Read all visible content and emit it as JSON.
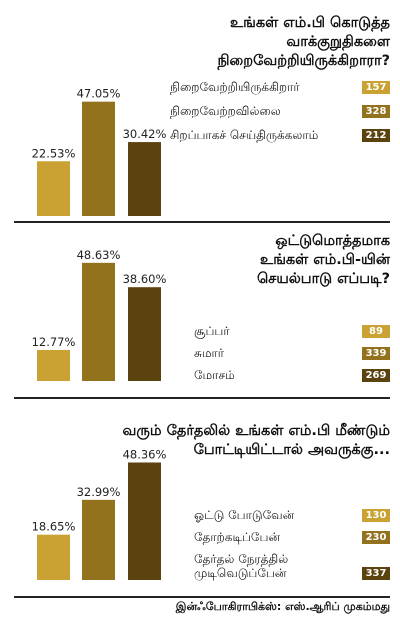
{
  "colors": {
    "light": "#c9a233",
    "mid": "#93721e",
    "dark": "#5a430f"
  },
  "chart_data": [
    {
      "type": "bar",
      "title": "உங்கள் எம்.பி கொடுத்த வாக்குறுதிகளை நிறைவேற்றியிருக்கிறாரா?",
      "title_lines": [
        "உங்கள் எம்.பி கொடுத்த",
        "வாக்குறுதிகளை நிறைவேற்றியிருக்கிறாரா?"
      ],
      "categories": [
        "நிறைவேற்றியிருக்கிறார்",
        "நிறைவேற்றவில்லை",
        "சிறப்பாகச் செய்திருக்கலாம்"
      ],
      "value_labels": [
        "22.53%",
        "47.05%",
        "30.42%"
      ],
      "values": [
        22.53,
        47.05,
        30.42
      ],
      "counts": [
        "157",
        "328",
        "212"
      ],
      "xlabel": "",
      "ylabel": ""
    },
    {
      "type": "bar",
      "title": "ஒட்டுமொத்தமாக உங்கள் எம்.பி-யின் செயல்பாடு எப்படி?",
      "title_lines": [
        "ஒட்டுமொத்தமாக",
        "உங்கள் எம்.பி-யின்",
        "செயல்பாடு எப்படி?"
      ],
      "categories": [
        "சூப்பர்",
        "சுமார்",
        "மோசம்"
      ],
      "value_labels": [
        "12.77%",
        "48.63%",
        "38.60%"
      ],
      "values": [
        12.77,
        48.63,
        38.6
      ],
      "counts": [
        "89",
        "339",
        "269"
      ],
      "xlabel": "",
      "ylabel": ""
    },
    {
      "type": "bar",
      "title": "வரும் தேர்தலில் உங்கள் எம்.பி மீண்டும் போட்டியிட்டால் அவருக்கு...",
      "title_lines": [
        "வரும் தேர்தலில் உங்கள் எம்.பி மீண்டும்",
        "போட்டியிட்டால் அவருக்கு..."
      ],
      "categories": [
        "ஓட்டு போடுவேன்",
        "தோற்கடிப்பேன்",
        "தேர்தல் நேரத்தில் முடிவெடுப்பேன்"
      ],
      "category_lines": [
        [
          "ஓட்டு போடுவேன்"
        ],
        [
          "தோற்கடிப்பேன்"
        ],
        [
          "தேர்தல் நேரத்தில்",
          "முடிவெடுப்பேன்"
        ]
      ],
      "value_labels": [
        "18.65%",
        "32.99%",
        "48.36%"
      ],
      "values": [
        18.65,
        32.99,
        48.36
      ],
      "counts": [
        "130",
        "230",
        "337"
      ],
      "xlabel": "",
      "ylabel": ""
    }
  ],
  "footer": "இன்ஃபோகிராபிக்ஸ்: எஸ்.ஆரிப் முகம்மது"
}
